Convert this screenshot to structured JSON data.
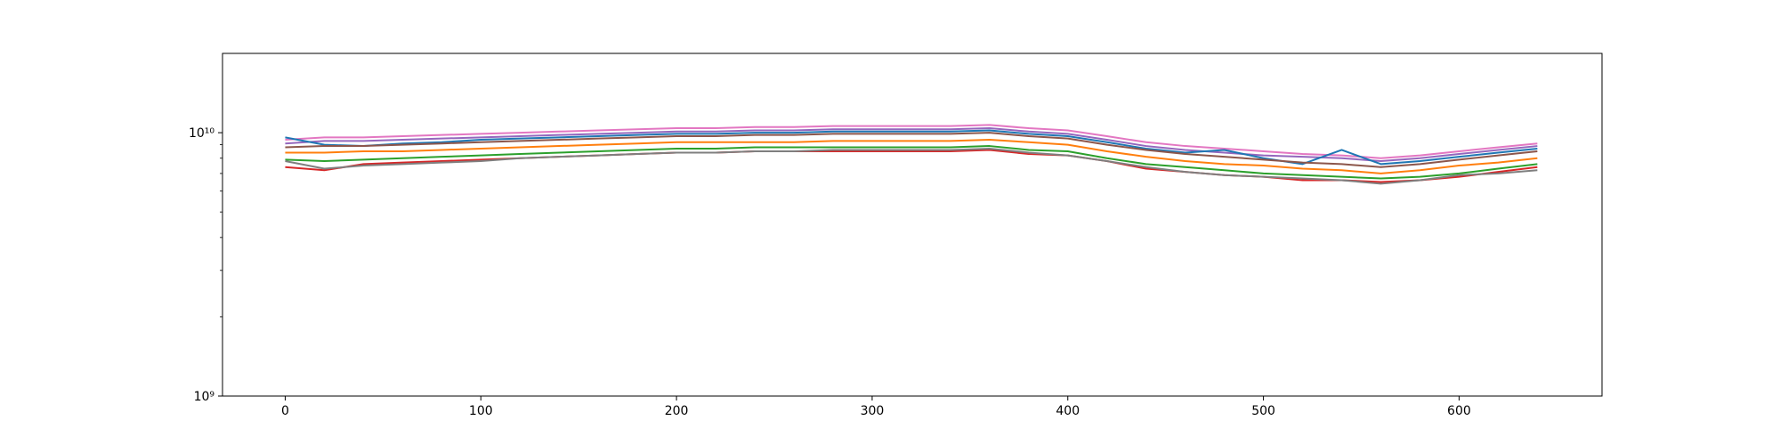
{
  "chart_data": {
    "type": "line",
    "x": [
      0,
      20,
      40,
      60,
      80,
      100,
      120,
      140,
      160,
      180,
      200,
      220,
      240,
      260,
      280,
      300,
      320,
      340,
      360,
      380,
      400,
      420,
      440,
      460,
      480,
      500,
      520,
      540,
      560,
      580,
      600,
      620,
      640
    ],
    "series": [
      {
        "color": "#e377c2",
        "values": [
          9400000000.0,
          9600000000.0,
          9600000000.0,
          9700000000.0,
          9800000000.0,
          9900000000.0,
          10000000000.0,
          10100000000.0,
          10200000000.0,
          10300000000.0,
          10400000000.0,
          10400000000.0,
          10500000000.0,
          10500000000.0,
          10600000000.0,
          10600000000.0,
          10600000000.0,
          10600000000.0,
          10700000000.0,
          10400000000.0,
          10200000000.0,
          9700000000.0,
          9200000000.0,
          8900000000.0,
          8700000000.0,
          8500000000.0,
          8300000000.0,
          8200000000.0,
          8000000000.0,
          8200000000.0,
          8500000000.0,
          8800000000.0,
          9100000000.0
        ]
      },
      {
        "color": "#9467bd",
        "values": [
          9100000000.0,
          9300000000.0,
          9300000000.0,
          9400000000.0,
          9500000000.0,
          9600000000.0,
          9700000000.0,
          9800000000.0,
          9900000000.0,
          10000000000.0,
          10100000000.0,
          10100000000.0,
          10200000000.0,
          10200000000.0,
          10300000000.0,
          10300000000.0,
          10300000000.0,
          10300000000.0,
          10400000000.0,
          10100000000.0,
          9900000000.0,
          9400000000.0,
          8900000000.0,
          8600000000.0,
          8400000000.0,
          8200000000.0,
          8100000000.0,
          8000000000.0,
          7800000000.0,
          8000000000.0,
          8300000000.0,
          8600000000.0,
          8900000000.0
        ]
      },
      {
        "color": "#1f77b4",
        "values": [
          9600000000.0,
          9000000000.0,
          8900000000.0,
          9100000000.0,
          9200000000.0,
          9400000000.0,
          9500000000.0,
          9600000000.0,
          9700000000.0,
          9800000000.0,
          9900000000.0,
          9900000000.0,
          10000000000.0,
          10000000000.0,
          10100000000.0,
          10100000000.0,
          10100000000.0,
          10100000000.0,
          10200000000.0,
          9900000000.0,
          9700000000.0,
          9200000000.0,
          8700000000.0,
          8400000000.0,
          8600000000.0,
          8000000000.0,
          7600000000.0,
          8600000000.0,
          7600000000.0,
          7800000000.0,
          8100000000.0,
          8400000000.0,
          8700000000.0
        ]
      },
      {
        "color": "#8c564b",
        "values": [
          8800000000.0,
          8900000000.0,
          8900000000.0,
          9000000000.0,
          9100000000.0,
          9200000000.0,
          9300000000.0,
          9400000000.0,
          9500000000.0,
          9600000000.0,
          9700000000.0,
          9700000000.0,
          9800000000.0,
          9800000000.0,
          9900000000.0,
          9900000000.0,
          9900000000.0,
          9900000000.0,
          10000000000.0,
          9700000000.0,
          9500000000.0,
          9000000000.0,
          8600000000.0,
          8300000000.0,
          8100000000.0,
          7900000000.0,
          7700000000.0,
          7600000000.0,
          7400000000.0,
          7600000000.0,
          7900000000.0,
          8200000000.0,
          8500000000.0
        ]
      },
      {
        "color": "#ff7f0e",
        "values": [
          8400000000.0,
          8400000000.0,
          8500000000.0,
          8500000000.0,
          8600000000.0,
          8700000000.0,
          8800000000.0,
          8900000000.0,
          9000000000.0,
          9100000000.0,
          9200000000.0,
          9200000000.0,
          9200000000.0,
          9200000000.0,
          9300000000.0,
          9300000000.0,
          9300000000.0,
          9300000000.0,
          9400000000.0,
          9200000000.0,
          9000000000.0,
          8500000000.0,
          8100000000.0,
          7800000000.0,
          7600000000.0,
          7500000000.0,
          7300000000.0,
          7200000000.0,
          7000000000.0,
          7200000000.0,
          7500000000.0,
          7700000000.0,
          8000000000.0
        ]
      },
      {
        "color": "#2ca02c",
        "values": [
          7900000000.0,
          7800000000.0,
          7900000000.0,
          8000000000.0,
          8100000000.0,
          8200000000.0,
          8300000000.0,
          8400000000.0,
          8500000000.0,
          8600000000.0,
          8700000000.0,
          8700000000.0,
          8800000000.0,
          8800000000.0,
          8800000000.0,
          8800000000.0,
          8800000000.0,
          8800000000.0,
          8900000000.0,
          8600000000.0,
          8500000000.0,
          8000000000.0,
          7600000000.0,
          7400000000.0,
          7200000000.0,
          7000000000.0,
          6900000000.0,
          6800000000.0,
          6700000000.0,
          6800000000.0,
          7000000000.0,
          7300000000.0,
          7600000000.0
        ]
      },
      {
        "color": "#d62728",
        "values": [
          7400000000.0,
          7200000000.0,
          7600000000.0,
          7700000000.0,
          7800000000.0,
          7900000000.0,
          8000000000.0,
          8100000000.0,
          8200000000.0,
          8300000000.0,
          8400000000.0,
          8400000000.0,
          8500000000.0,
          8500000000.0,
          8500000000.0,
          8500000000.0,
          8500000000.0,
          8500000000.0,
          8600000000.0,
          8300000000.0,
          8200000000.0,
          7800000000.0,
          7300000000.0,
          7100000000.0,
          6900000000.0,
          6800000000.0,
          6600000000.0,
          6600000000.0,
          6500000000.0,
          6600000000.0,
          6800000000.0,
          7100000000.0,
          7400000000.0
        ]
      },
      {
        "color": "#7f7f7f",
        "values": [
          7800000000.0,
          7300000000.0,
          7500000000.0,
          7600000000.0,
          7700000000.0,
          7800000000.0,
          8000000000.0,
          8100000000.0,
          8200000000.0,
          8300000000.0,
          8400000000.0,
          8400000000.0,
          8500000000.0,
          8500000000.0,
          8600000000.0,
          8600000000.0,
          8600000000.0,
          8600000000.0,
          8700000000.0,
          8400000000.0,
          8200000000.0,
          7800000000.0,
          7400000000.0,
          7100000000.0,
          6900000000.0,
          6800000000.0,
          6700000000.0,
          6600000000.0,
          6400000000.0,
          6600000000.0,
          6900000000.0,
          7000000000.0,
          7200000000.0
        ]
      }
    ],
    "xlim": [
      -32.05,
      673.05
    ],
    "xticks": [
      0,
      100,
      200,
      300,
      400,
      500,
      600
    ],
    "ylim": [
      1000000000.0,
      20000000000.0
    ],
    "log_y": true,
    "yticks": [
      {
        "value": 1000000000.0,
        "label": "10⁹"
      },
      {
        "value": 10000000000.0,
        "label": "10¹⁰"
      }
    ],
    "yminorticks": [
      2000000000.0,
      3000000000.0,
      4000000000.0,
      5000000000.0,
      6000000000.0,
      7000000000.0,
      8000000000.0,
      9000000000.0
    ]
  }
}
